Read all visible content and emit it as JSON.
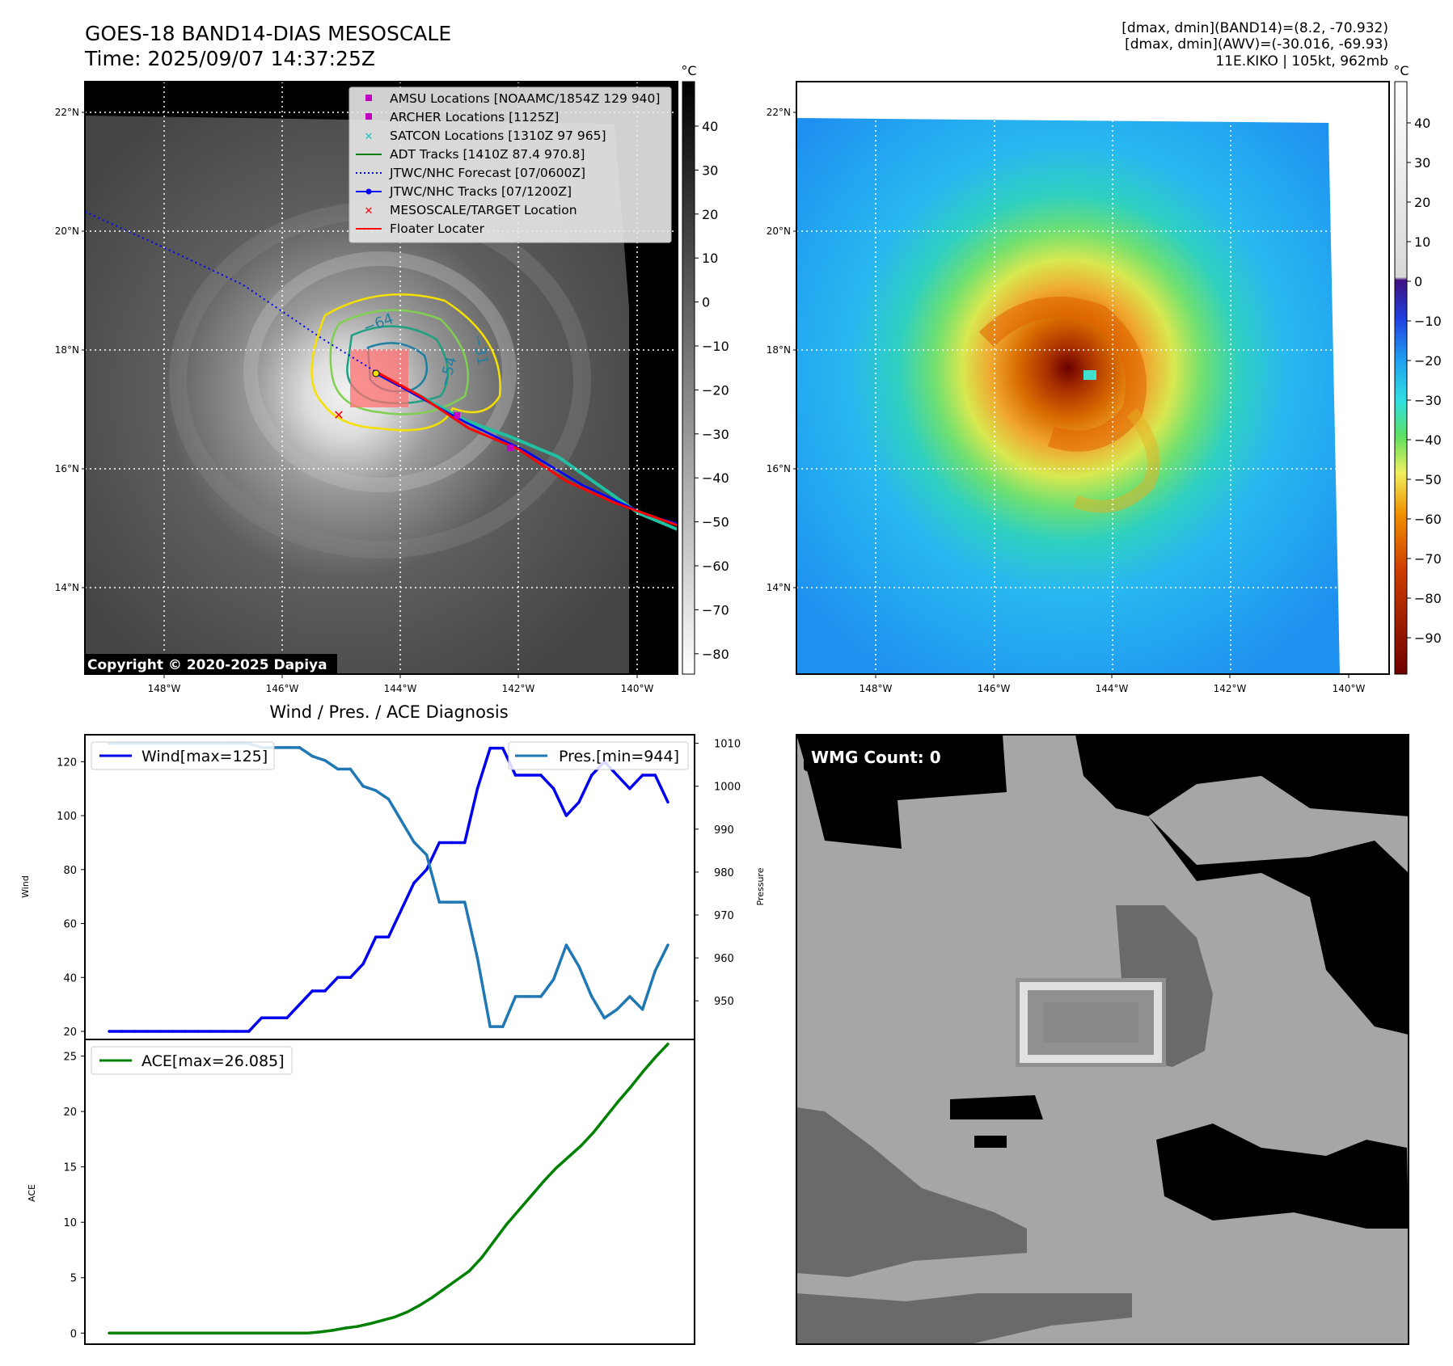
{
  "header": {
    "title_line1": "GOES-18 BAND14-DIAS MESOSCALE",
    "title_line2": "Time: 2025/09/07 14:37:25Z",
    "info_line1": "[dmax, dmin](BAND14)=(8.2, -70.932)",
    "info_line2": "[dmax, dmin](AWV)=(-30.016, -69.93)",
    "info_line3": "11E.KIKO | 105kt, 962mb"
  },
  "copyright": "Copyright © 2020-2025 Dapiya",
  "lat_labels": [
    "22°N",
    "20°N",
    "18°N",
    "16°N",
    "14°N"
  ],
  "lon_labels": [
    "148°W",
    "146°W",
    "144°W",
    "142°W",
    "140°W"
  ],
  "colorbar_unit": "°C",
  "colorbar1_ticks": [
    "40",
    "30",
    "20",
    "10",
    "0",
    "−10",
    "−20",
    "−30",
    "−40",
    "−50",
    "−60",
    "−70",
    "−80"
  ],
  "colorbar2_ticks": [
    "40",
    "30",
    "20",
    "10",
    "0",
    "−10",
    "−20",
    "−30",
    "−40",
    "−50",
    "−60",
    "−70",
    "−80",
    "−90"
  ],
  "contour_labels": [
    "−64",
    "−54",
    "−31"
  ],
  "legend": [
    "AMSU Locations [NOAAMC/1854Z 129 940]",
    "ARCHER Locations [1125Z]",
    "SATCON Locations [1310Z 97 965]",
    "ADT Tracks [1410Z 87.4 970.8]",
    "JTWC/NHC Forecast [07/0600Z]",
    "JTWC/NHC Tracks [07/1200Z]",
    "MESOSCALE/TARGET Location",
    "Floater Locater"
  ],
  "colors": {
    "wind": "#0000ee",
    "pressure": "#1f77b4",
    "ace": "#008000",
    "adt": "#008000",
    "forecast": "#0000ff",
    "floater": "#ff0000",
    "satcon": "#20c0c0",
    "amsu": "#c000c0"
  },
  "wmg_label": "WMG Count: 0",
  "chart_data": [
    {
      "type": "line",
      "title": "Wind / Pres. / ACE Diagnosis",
      "ylabel": "Wind",
      "ylabel_right": "Pressure",
      "ylim": [
        17,
        130
      ],
      "ylim_right": [
        941,
        1012
      ],
      "yticks": [
        20,
        40,
        60,
        80,
        100,
        120
      ],
      "yticks_right": [
        950,
        960,
        970,
        980,
        990,
        1000,
        1010
      ],
      "series": [
        {
          "name": "Wind[max=125]",
          "axis": "left",
          "values": [
            20,
            20,
            20,
            20,
            20,
            20,
            20,
            20,
            20,
            20,
            20,
            20,
            25,
            25,
            25,
            30,
            35,
            35,
            40,
            40,
            45,
            55,
            55,
            65,
            75,
            80,
            90,
            90,
            90,
            110,
            125,
            125,
            115,
            115,
            115,
            110,
            100,
            105,
            115,
            120,
            115,
            110,
            115,
            115,
            105
          ]
        },
        {
          "name": "Pres.[min=944]",
          "axis": "right",
          "values": [
            1010,
            1010,
            1010,
            1010,
            1010,
            1010,
            1010,
            1010,
            1010,
            1010,
            1010,
            1010,
            1009,
            1009,
            1009,
            1009,
            1007,
            1006,
            1004,
            1004,
            1000,
            999,
            997,
            992,
            987,
            984,
            973,
            973,
            973,
            960,
            944,
            944,
            951,
            951,
            951,
            955,
            963,
            958,
            951,
            946,
            948,
            951,
            948,
            957,
            963
          ]
        }
      ]
    },
    {
      "type": "line",
      "ylabel": "ACE",
      "ylim": [
        -1,
        26.5
      ],
      "yticks": [
        0,
        5,
        10,
        15,
        20,
        25
      ],
      "series": [
        {
          "name": "ACE[max=26.085]",
          "values": [
            0,
            0,
            0,
            0,
            0,
            0,
            0,
            0,
            0,
            0,
            0,
            0,
            0,
            0,
            0,
            0,
            0,
            0.1,
            0.25,
            0.45,
            0.6,
            0.85,
            1.15,
            1.45,
            1.9,
            2.5,
            3.2,
            4,
            4.8,
            5.6,
            6.8,
            8.3,
            9.8,
            11.1,
            12.4,
            13.7,
            14.9,
            15.9,
            16.9,
            18.1,
            19.5,
            20.9,
            22.2,
            23.6,
            24.9,
            26.085
          ]
        }
      ]
    }
  ]
}
